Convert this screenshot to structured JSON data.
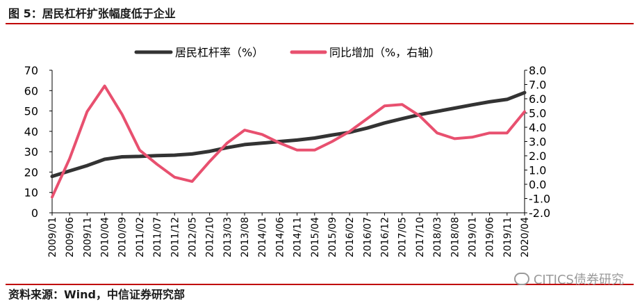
{
  "header": {
    "title": "图 5：居民杠杆扩张幅度低于企业"
  },
  "footer": {
    "source": "资料来源：Wind，中信证券研究部",
    "watermark": "CITICS债券研究"
  },
  "colors": {
    "leverage": "#333333",
    "growth": "#e8506f",
    "accent_rule": "#c00000"
  },
  "chart_data": {
    "type": "line",
    "title": "",
    "x_tick_labels": [
      "2009/01",
      "2009/06",
      "2009/11",
      "2010/04",
      "2010/09",
      "2011/02",
      "2011/07",
      "2011/12",
      "2012/05",
      "2012/10",
      "2013/03",
      "2013/08",
      "2014/01",
      "2014/06",
      "2014/11",
      "2015/04",
      "2015/09",
      "2016/02",
      "2016/07",
      "2016/12",
      "2017/05",
      "2017/10",
      "2018/03",
      "2018/08",
      "2019/01",
      "2019/06",
      "2019/11",
      "2020/04"
    ],
    "y_left": {
      "min": 0,
      "max": 70,
      "ticks": [
        0,
        10,
        20,
        30,
        40,
        50,
        60,
        70
      ]
    },
    "y_right": {
      "min": -2.0,
      "max": 8.0,
      "ticks": [
        -2.0,
        -1.0,
        0.0,
        1.0,
        2.0,
        3.0,
        4.0,
        5.0,
        6.0,
        7.0,
        8.0
      ]
    },
    "legend_position": "top-center",
    "series": [
      {
        "name": "居民杠杆率（%）",
        "axis": "left",
        "x": [
          "2009/01",
          "2009/06",
          "2009/11",
          "2010/04",
          "2010/09",
          "2011/02",
          "2011/07",
          "2011/12",
          "2012/05",
          "2012/10",
          "2013/03",
          "2013/08",
          "2014/01",
          "2014/06",
          "2014/11",
          "2015/04",
          "2015/09",
          "2016/02",
          "2016/07",
          "2016/12",
          "2017/05",
          "2017/10",
          "2018/03",
          "2018/08",
          "2019/01",
          "2019/06",
          "2019/11",
          "2020/04"
        ],
        "values": [
          17.9,
          20.6,
          23.2,
          26.3,
          27.5,
          27.7,
          28.1,
          28.3,
          28.9,
          30.2,
          32.0,
          33.5,
          34.2,
          35.0,
          35.7,
          36.7,
          38.2,
          39.5,
          41.6,
          44.1,
          46.2,
          48.2,
          49.8,
          51.4,
          53.0,
          54.5,
          55.7,
          59.0
        ]
      },
      {
        "name": "同比增加（%，右轴）",
        "axis": "right",
        "x": [
          "2009/01",
          "2009/06",
          "2009/11",
          "2010/04",
          "2010/09",
          "2011/02",
          "2011/07",
          "2011/12",
          "2012/05",
          "2012/10",
          "2013/03",
          "2013/08",
          "2014/01",
          "2014/06",
          "2014/11",
          "2015/04",
          "2015/09",
          "2016/02",
          "2016/07",
          "2016/12",
          "2017/05",
          "2017/10",
          "2018/03",
          "2018/08",
          "2019/01",
          "2019/06",
          "2019/11",
          "2020/04"
        ],
        "values": [
          -0.9,
          1.8,
          5.1,
          6.9,
          4.9,
          2.4,
          1.4,
          0.5,
          0.2,
          1.6,
          2.9,
          3.8,
          3.5,
          2.9,
          2.4,
          2.4,
          3.0,
          3.7,
          4.6,
          5.5,
          5.6,
          4.8,
          3.6,
          3.2,
          3.3,
          3.6,
          3.6,
          5.1
        ]
      }
    ]
  }
}
